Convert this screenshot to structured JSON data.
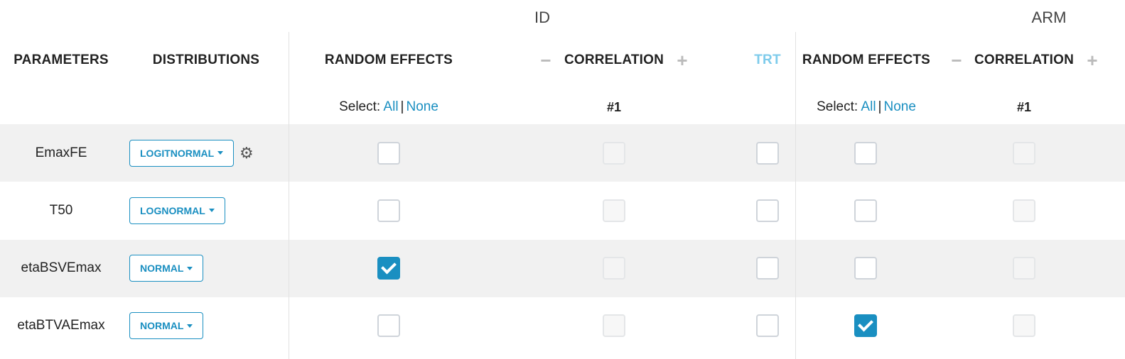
{
  "groups": {
    "id": "ID",
    "arm": "ARM"
  },
  "headers": {
    "parameters": "PARAMETERS",
    "distributions": "DISTRIBUTIONS",
    "id_random_effects": "RANDOM EFFECTS",
    "id_correlation": "CORRELATION",
    "trt": "TRT",
    "arm_random_effects": "RANDOM EFFECTS",
    "arm_correlation": "CORRELATION",
    "minus": "−",
    "plus": "+"
  },
  "select": {
    "label": "Select:",
    "all": "All",
    "separator": "|",
    "none": "None"
  },
  "correlation_number": "#1",
  "colors": {
    "accent": "#1a8fc1",
    "trt": "#7dcbeb",
    "row_alt": "#f1f1f1"
  },
  "rows": [
    {
      "name": "EmaxFE",
      "distribution": "LOGITNORMAL",
      "settings_icon": "gear-icon",
      "id_re": false,
      "id_corr": false,
      "trt": false,
      "arm_re": false,
      "arm_corr": false
    },
    {
      "name": "T50",
      "distribution": "LOGNORMAL",
      "id_re": false,
      "id_corr": false,
      "trt": false,
      "arm_re": false,
      "arm_corr": false
    },
    {
      "name": "etaBSVEmax",
      "distribution": "NORMAL",
      "id_re": true,
      "id_corr": false,
      "trt": false,
      "arm_re": false,
      "arm_corr": false
    },
    {
      "name": "etaBTVAEmax",
      "distribution": "NORMAL",
      "id_re": false,
      "id_corr": false,
      "trt": false,
      "arm_re": true,
      "arm_corr": false
    }
  ]
}
